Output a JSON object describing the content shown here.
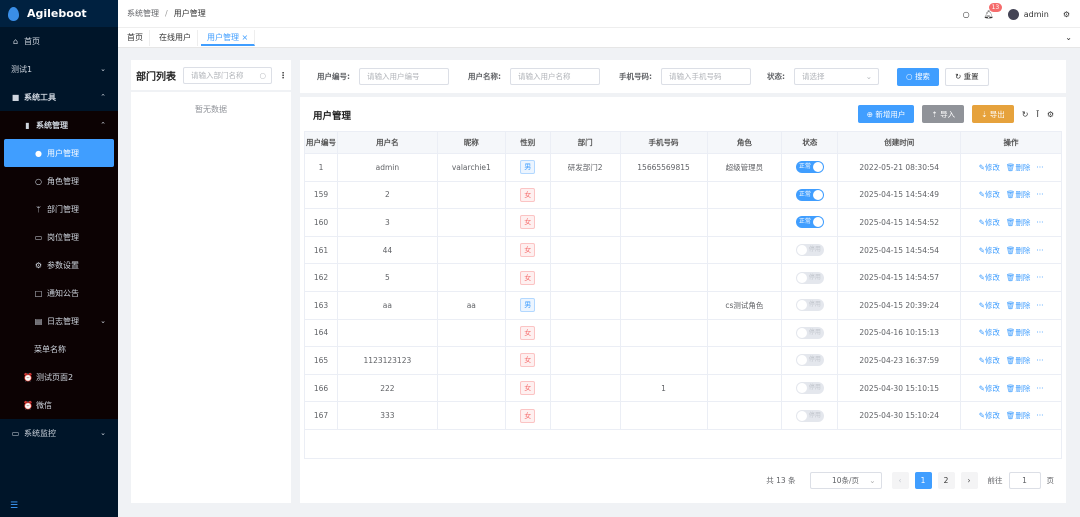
{
  "app": {
    "name": "Agileboot"
  },
  "sidebar": {
    "items": [
      {
        "label": "首页",
        "icon": "home-icon"
      },
      {
        "label": "测试1"
      },
      {
        "label": "系统工具",
        "icon": "briefcase-icon"
      },
      {
        "label": "系统管理",
        "icon": "book-icon"
      },
      {
        "label": "用户管理",
        "icon": "user-icon"
      },
      {
        "label": "角色管理",
        "icon": "user-outline-icon"
      },
      {
        "label": "部门管理",
        "icon": "branch-icon"
      },
      {
        "label": "岗位管理",
        "icon": "id-card-icon"
      },
      {
        "label": "参数设置",
        "icon": "gear-icon"
      },
      {
        "label": "通知公告",
        "icon": "notice-icon"
      },
      {
        "label": "日志管理",
        "icon": "document-icon"
      },
      {
        "label": "菜单名称"
      },
      {
        "label": "测试页面2",
        "icon": "alarm-icon"
      },
      {
        "label": "微信",
        "icon": "alarm-icon"
      },
      {
        "label": "系统监控",
        "icon": "monitor-icon"
      }
    ]
  },
  "header": {
    "breadcrumb": [
      "系统管理",
      "用户管理"
    ],
    "separator": "/",
    "notifications": "13",
    "username": "admin"
  },
  "tabs": [
    "首页",
    "在线用户",
    "用户管理"
  ],
  "dept": {
    "title": "部门列表",
    "placeholder": "请输入部门名称",
    "empty": "暂无数据"
  },
  "filter": {
    "user_id_label": "用户编号:",
    "user_id_placeholder": "请输入用户编号",
    "username_label": "用户名称:",
    "username_placeholder": "请输入用户名称",
    "phone_label": "手机号码:",
    "phone_placeholder": "请输入手机号码",
    "status_label": "状态:",
    "status_placeholder": "请选择",
    "search": "搜索",
    "reset": "重置"
  },
  "table": {
    "title": "用户管理",
    "add": "新增用户",
    "import": "导入",
    "export": "导出",
    "columns": [
      "用户编号",
      "用户名",
      "昵称",
      "性别",
      "部门",
      "手机号码",
      "角色",
      "状态",
      "创建时间",
      "操作"
    ],
    "edit": "修改",
    "delete": "删除",
    "more": "···",
    "status_on": "正常",
    "status_off": "停用",
    "rows": [
      {
        "id": "1",
        "username": "admin",
        "nickname": "valarchie1",
        "gender": "男",
        "dept": "研发部门2",
        "phone": "15665569815",
        "role": "超级管理员",
        "enabled": true,
        "created": "2022-05-21 08:30:54"
      },
      {
        "id": "159",
        "username": "2",
        "nickname": "",
        "gender": "女",
        "dept": "",
        "phone": "",
        "role": "",
        "enabled": true,
        "created": "2025-04-15 14:54:49"
      },
      {
        "id": "160",
        "username": "3",
        "nickname": "",
        "gender": "女",
        "dept": "",
        "phone": "",
        "role": "",
        "enabled": true,
        "created": "2025-04-15 14:54:52"
      },
      {
        "id": "161",
        "username": "44",
        "nickname": "",
        "gender": "女",
        "dept": "",
        "phone": "",
        "role": "",
        "enabled": false,
        "created": "2025-04-15 14:54:54"
      },
      {
        "id": "162",
        "username": "5",
        "nickname": "",
        "gender": "女",
        "dept": "",
        "phone": "",
        "role": "",
        "enabled": false,
        "created": "2025-04-15 14:54:57"
      },
      {
        "id": "163",
        "username": "aa",
        "nickname": "aa",
        "gender": "男",
        "dept": "",
        "phone": "",
        "role": "cs测试角色",
        "enabled": false,
        "created": "2025-04-15 20:39:24"
      },
      {
        "id": "164",
        "username": "",
        "nickname": "",
        "gender": "女",
        "dept": "",
        "phone": "",
        "role": "",
        "enabled": false,
        "created": "2025-04-16 10:15:13"
      },
      {
        "id": "165",
        "username": "1123123123",
        "nickname": "",
        "gender": "女",
        "dept": "",
        "phone": "",
        "role": "",
        "enabled": false,
        "created": "2025-04-23 16:37:59"
      },
      {
        "id": "166",
        "username": "222",
        "nickname": "",
        "gender": "女",
        "dept": "",
        "phone": "1",
        "role": "",
        "enabled": false,
        "created": "2025-04-30 15:10:15"
      },
      {
        "id": "167",
        "username": "333",
        "nickname": "",
        "gender": "女",
        "dept": "",
        "phone": "",
        "role": "",
        "enabled": false,
        "created": "2025-04-30 15:10:24"
      }
    ]
  },
  "pagination": {
    "total": "共 13 条",
    "page_size": "10条/页",
    "pages": [
      "1",
      "2"
    ],
    "current": "1",
    "goto_label": "前往",
    "goto_value": "1",
    "goto_suffix": "页"
  }
}
